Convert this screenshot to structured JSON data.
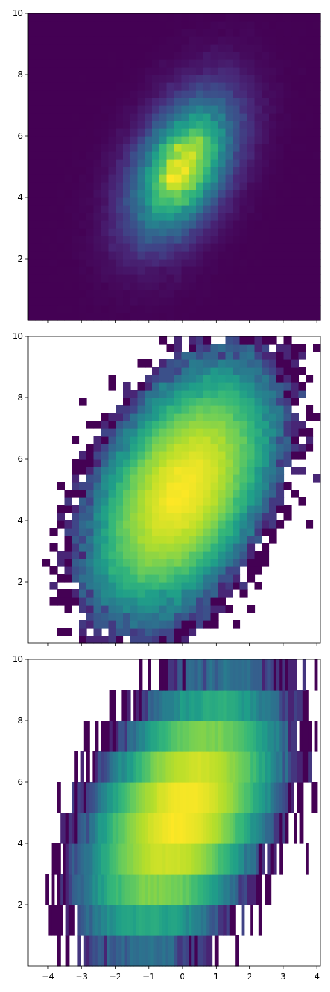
{
  "figure": {
    "background": "#ffffff",
    "colormap": "viridis",
    "colormap_stops": [
      "#440154",
      "#482878",
      "#3e4989",
      "#31688e",
      "#26828e",
      "#1f9e89",
      "#35b779",
      "#6ece58",
      "#b5de2b",
      "#fde725"
    ]
  },
  "chart_data": [
    {
      "type": "heatmap",
      "title": "",
      "xlabel": "",
      "ylabel": "",
      "xlim": [
        -4.6,
        4.1
      ],
      "ylim": [
        0,
        10
      ],
      "x_ticks": [
        -4,
        -3,
        -2,
        -1,
        0,
        1,
        2,
        3,
        4
      ],
      "x_ticklabels_shown": false,
      "y_ticks": [
        2,
        4,
        6,
        8,
        10
      ],
      "y_ticklabels": [
        "2",
        "4",
        "6",
        "8",
        "10"
      ],
      "grid": false,
      "norm": "linear",
      "empty_bins": "lowest color",
      "bins": [
        40,
        40
      ],
      "distribution": {
        "x_mean": 0,
        "y_mean": 5,
        "x_sd": 1.0,
        "y_sd": 1.5,
        "correlation": 0.45,
        "samples": 100000
      }
    },
    {
      "type": "heatmap",
      "title": "",
      "xlabel": "",
      "ylabel": "",
      "xlim": [
        -4.6,
        4.1
      ],
      "ylim": [
        0,
        10
      ],
      "x_ticks": [
        -4,
        -3,
        -2,
        -1,
        0,
        1,
        2,
        3,
        4
      ],
      "x_ticklabels_shown": false,
      "y_ticks": [
        2,
        4,
        6,
        8,
        10
      ],
      "y_ticklabels": [
        "2",
        "4",
        "6",
        "8",
        "10"
      ],
      "grid": false,
      "norm": "log",
      "empty_bins": "transparent",
      "bins": [
        40,
        40
      ],
      "distribution": {
        "x_mean": 0,
        "y_mean": 5,
        "x_sd": 1.0,
        "y_sd": 1.5,
        "correlation": 0.45,
        "samples": 100000
      }
    },
    {
      "type": "heatmap",
      "title": "",
      "xlabel": "",
      "ylabel": "",
      "xlim": [
        -4.6,
        4.1
      ],
      "ylim": [
        0,
        10
      ],
      "x_ticks": [
        -4,
        -3,
        -2,
        -1,
        0,
        1,
        2,
        3,
        4
      ],
      "x_ticklabels": [
        "−4",
        "−3",
        "−2",
        "−1",
        "0",
        "1",
        "2",
        "3",
        "4"
      ],
      "y_ticks": [
        2,
        4,
        6,
        8,
        10
      ],
      "y_ticklabels": [
        "2",
        "4",
        "6",
        "8",
        "10"
      ],
      "grid": false,
      "norm": "log",
      "empty_bins": "transparent",
      "bins": [
        100,
        10
      ],
      "distribution": {
        "x_mean": 0,
        "y_mean": 5,
        "x_sd": 1.0,
        "y_sd": 1.5,
        "correlation": 0.45,
        "samples": 100000
      }
    }
  ]
}
